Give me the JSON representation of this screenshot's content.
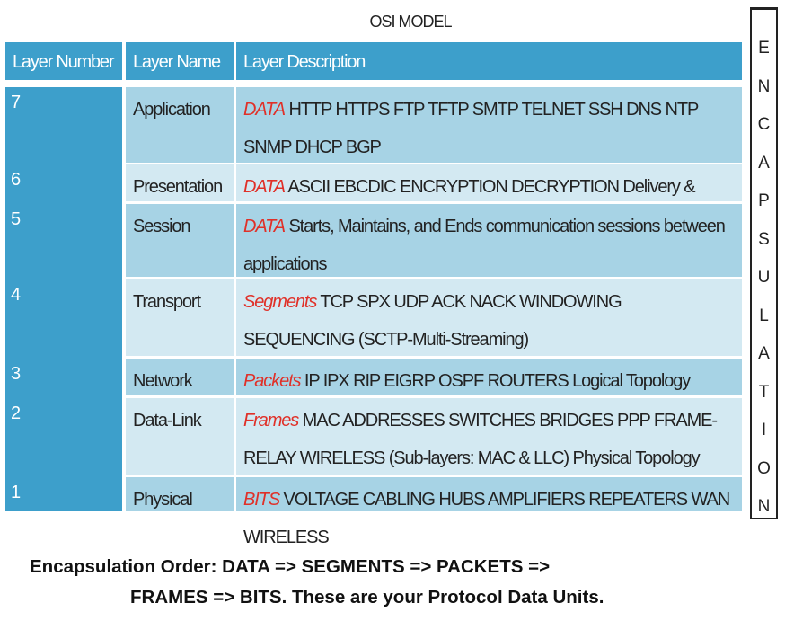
{
  "title": "OSI MODEL",
  "headers": [
    "Layer Number",
    "Layer Name",
    "Layer Description"
  ],
  "rows": [
    {
      "number": "7",
      "name": "Application",
      "pdu": "DATA",
      "desc": " HTTP HTTPS FTP TFTP SMTP TELNET SSH DNS NTP SNMP DHCP BGP"
    },
    {
      "number": "6",
      "name": "Presentation",
      "pdu": "DATA",
      "desc": " ASCII EBCDIC ENCRYPTION DECRYPTION Delivery & Formatting"
    },
    {
      "number": "5",
      "name": "Session",
      "pdu": "DATA",
      "desc": " Starts, Maintains, and Ends communication sessions between applications"
    },
    {
      "number": "4",
      "name": "Transport",
      "pdu": "Segments",
      "desc": " TCP SPX UDP ACK NACK WINDOWING SEQUENCING (SCTP-Multi-Streaming)"
    },
    {
      "number": "3",
      "name": "Network",
      "pdu": "Packets",
      "desc": " IP IPX RIP EIGRP OSPF ROUTERS Logical Topology"
    },
    {
      "number": "2",
      "name": "Data-Link",
      "pdu": "Frames",
      "desc": " MAC ADDRESSES SWITCHES BRIDGES PPP FRAME-RELAY WIRELESS (Sub-layers: MAC & LLC) Physical Topology"
    },
    {
      "number": "1",
      "name": "Physical",
      "pdu": "BITS",
      "desc": " VOLTAGE CABLING HUBS AMPLIFIERS REPEATERS WAN WIRELESS"
    }
  ],
  "encapsulation_label": "ENCAPSULATION",
  "footer": {
    "line1": "Encapsulation Order: DATA => SEGMENTS => PACKETS =>",
    "line2": "FRAMES => BITS.  These are your Protocol Data Units."
  },
  "colors": {
    "header": "#3d9fcb",
    "row_dark": "#a7d3e5",
    "row_light": "#d3e9f2",
    "pdu": "#e03028"
  }
}
